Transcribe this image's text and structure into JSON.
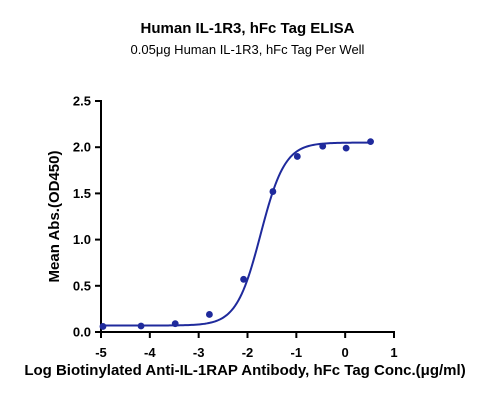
{
  "chart_data": {
    "type": "scatter",
    "title": "Human IL-1R3, hFc Tag ELISA",
    "subtitle": "0.05μg Human IL-1R3, hFc Tag Per Well",
    "xlabel": "Log Biotinylated Anti-IL-1RAP Antibody, hFc Tag Conc.(μg/ml)",
    "ylabel": "Mean Abs.(OD450)",
    "xlim": [
      -5,
      1
    ],
    "ylim": [
      0,
      2.5
    ],
    "xticks": [
      "-5",
      "-4",
      "-3",
      "-2",
      "-1",
      "0",
      "1"
    ],
    "yticks": [
      "0.0",
      "0.5",
      "1.0",
      "1.5",
      "2.0",
      "2.5"
    ],
    "grid": false,
    "colors": {
      "series": "#1f2a9c"
    },
    "series": [
      {
        "x": [
          -4.96,
          -4.18,
          -3.48,
          -2.78,
          -2.08,
          -1.48,
          -0.98,
          -0.46,
          0.02,
          0.52
        ],
        "values": [
          0.06,
          0.065,
          0.09,
          0.19,
          0.57,
          1.52,
          1.9,
          2.01,
          1.99,
          2.06
        ],
        "fit": "four-parameter logistic curve",
        "fit_params": {
          "bottom": 0.07,
          "top": 2.05,
          "ec50_log": -1.73,
          "hill": 1.75
        }
      }
    ]
  }
}
